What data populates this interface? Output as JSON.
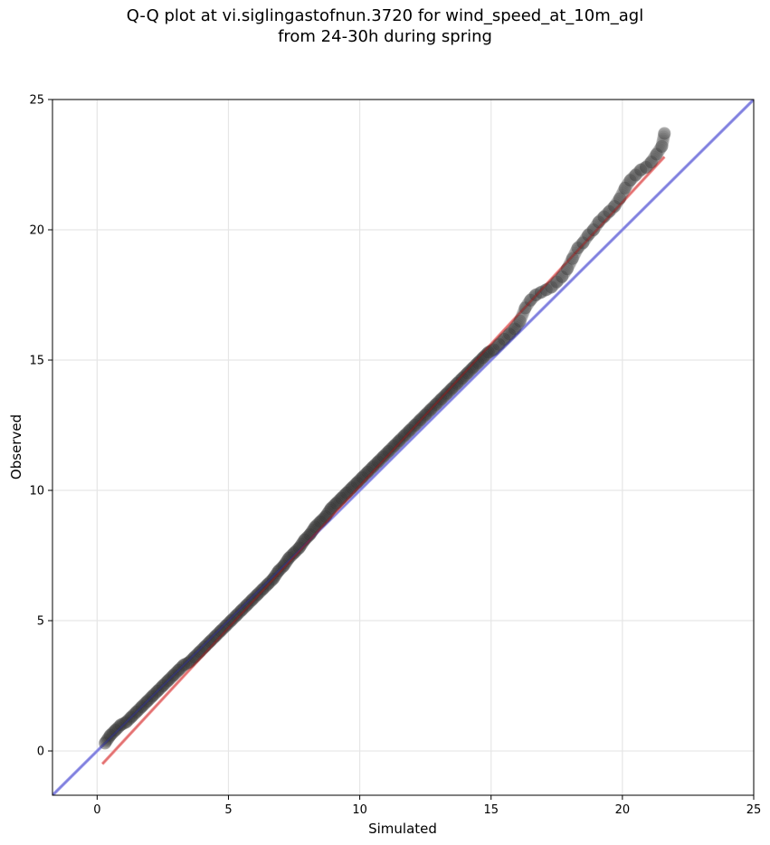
{
  "chart_data": {
    "type": "scatter",
    "title_lines": [
      "Q-Q plot at vi.siglingastofnun.3720 for wind_speed_at_10m_agl",
      "from 24-30h during spring"
    ],
    "xlabel": "Simulated",
    "ylabel": "Observed",
    "xlim": [
      -1.7,
      25
    ],
    "ylim": [
      -1.7,
      25
    ],
    "xticks": [
      0,
      5,
      10,
      15,
      20,
      25
    ],
    "yticks": [
      0,
      5,
      10,
      15,
      20,
      25
    ],
    "xtick_labels": [
      "0",
      "5",
      "10",
      "15",
      "20",
      "25"
    ],
    "ytick_labels": [
      "0",
      "5",
      "10",
      "15",
      "20",
      "25"
    ],
    "grid": true,
    "reference_line": {
      "name": "1:1 line",
      "color": "#aaaaee",
      "x": [
        -1.7,
        25
      ],
      "y": [
        -1.7,
        25
      ]
    },
    "fit_line": {
      "name": "linear fit",
      "color": "#f4a4a4",
      "x": [
        0.2,
        21.6
      ],
      "y": [
        -0.5,
        22.8
      ]
    },
    "points": {
      "color": "#333333",
      "x": [
        0.3,
        0.5,
        0.7,
        0.9,
        1.1,
        1.3,
        1.5,
        1.7,
        1.9,
        2.1,
        2.3,
        2.5,
        2.7,
        2.9,
        3.1,
        3.3,
        3.5,
        3.7,
        3.9,
        4.1,
        4.3,
        4.5,
        4.7,
        4.9,
        5.1,
        5.3,
        5.5,
        5.7,
        5.9,
        6.1,
        6.3,
        6.5,
        6.7,
        6.9,
        7.1,
        7.3,
        7.5,
        7.7,
        7.9,
        8.1,
        8.3,
        8.5,
        8.7,
        8.9,
        9.1,
        9.3,
        9.5,
        9.7,
        9.9,
        10.1,
        10.3,
        10.5,
        10.7,
        10.9,
        11.1,
        11.3,
        11.5,
        11.7,
        11.9,
        12.1,
        12.3,
        12.5,
        12.7,
        12.9,
        13.1,
        13.3,
        13.5,
        13.7,
        13.9,
        14.1,
        14.3,
        14.5,
        14.7,
        14.9,
        15.1,
        15.3,
        15.5,
        15.7,
        15.9,
        16.1,
        16.3,
        16.5,
        16.7,
        16.9,
        17.1,
        17.3,
        17.5,
        17.7,
        17.9,
        18.1,
        18.3,
        18.5,
        18.7,
        18.9,
        19.1,
        19.3,
        19.5,
        19.7,
        19.9,
        20.1,
        20.3,
        20.5,
        20.7,
        20.9,
        21.1,
        21.3,
        21.5,
        21.6
      ],
      "y": [
        0.3,
        0.6,
        0.8,
        1.0,
        1.1,
        1.3,
        1.5,
        1.7,
        1.9,
        2.1,
        2.3,
        2.5,
        2.7,
        2.9,
        3.1,
        3.3,
        3.4,
        3.6,
        3.8,
        4.0,
        4.2,
        4.4,
        4.6,
        4.8,
        5.0,
        5.2,
        5.4,
        5.6,
        5.8,
        6.0,
        6.2,
        6.4,
        6.6,
        6.9,
        7.1,
        7.4,
        7.6,
        7.8,
        8.1,
        8.3,
        8.6,
        8.8,
        9.0,
        9.3,
        9.5,
        9.7,
        9.9,
        10.1,
        10.3,
        10.5,
        10.7,
        10.9,
        11.1,
        11.3,
        11.5,
        11.7,
        11.9,
        12.1,
        12.3,
        12.5,
        12.7,
        12.9,
        13.1,
        13.3,
        13.5,
        13.7,
        13.9,
        14.1,
        14.3,
        14.5,
        14.7,
        14.9,
        15.1,
        15.3,
        15.4,
        15.6,
        15.8,
        16.0,
        16.2,
        16.5,
        17.0,
        17.3,
        17.5,
        17.6,
        17.7,
        17.8,
        18.0,
        18.2,
        18.5,
        18.9,
        19.3,
        19.5,
        19.8,
        20.0,
        20.3,
        20.5,
        20.7,
        20.9,
        21.2,
        21.6,
        21.9,
        22.1,
        22.3,
        22.4,
        22.6,
        22.9,
        23.2,
        23.7
      ]
    }
  }
}
